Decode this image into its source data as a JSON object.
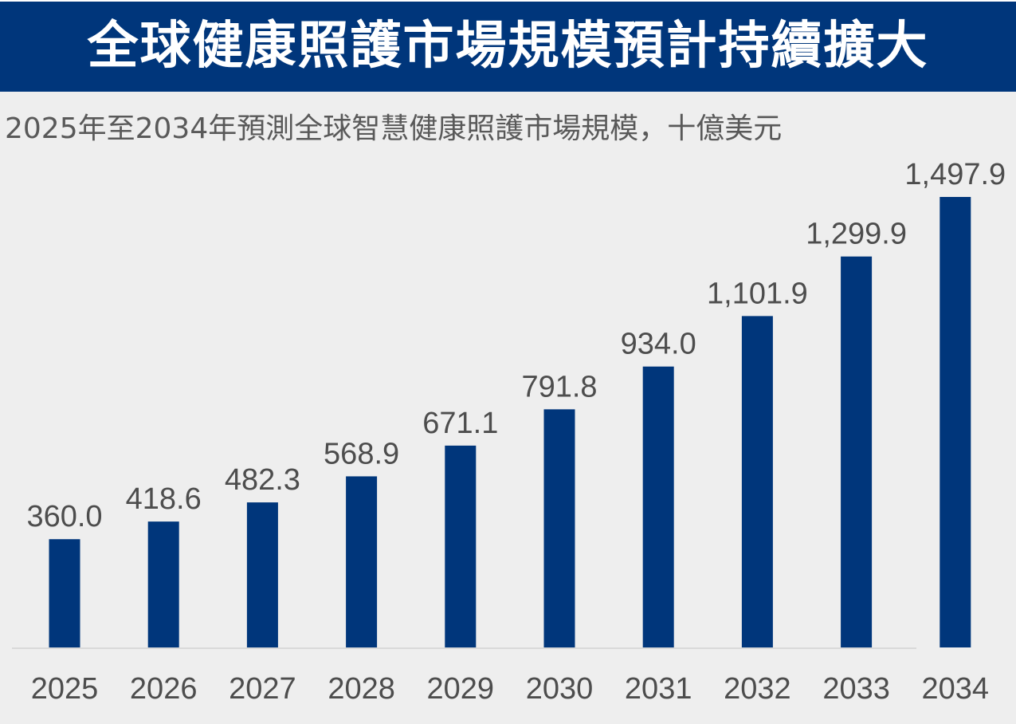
{
  "banner": {
    "title": "全球健康照護市場規模預計持續擴大"
  },
  "colors": {
    "banner_bg": "#00367b",
    "bar": "#00367b",
    "background": "#eeeeee",
    "text": "#4d4d4d"
  },
  "chart_data": {
    "type": "bar",
    "title": "全球健康照護市場規模預計持續擴大",
    "subtitle": "2025年至2034年預測全球智慧健康照護市場規模，十億美元",
    "xlabel": "",
    "ylabel": "十億美元",
    "categories": [
      "2025",
      "2026",
      "2027",
      "2028",
      "2029",
      "2030",
      "2031",
      "2032",
      "2033",
      "2034"
    ],
    "values": [
      360.0,
      418.6,
      482.3,
      568.9,
      671.1,
      791.8,
      934.0,
      1101.9,
      1299.9,
      1497.9
    ],
    "data_labels": [
      "360.0",
      "418.6",
      "482.3",
      "568.9",
      "671.1",
      "791.8",
      "934.0",
      "1,101.9",
      "1,299.9",
      "1,497.9"
    ],
    "ylim": [
      0,
      1500
    ],
    "grid": false,
    "legend": "none"
  }
}
